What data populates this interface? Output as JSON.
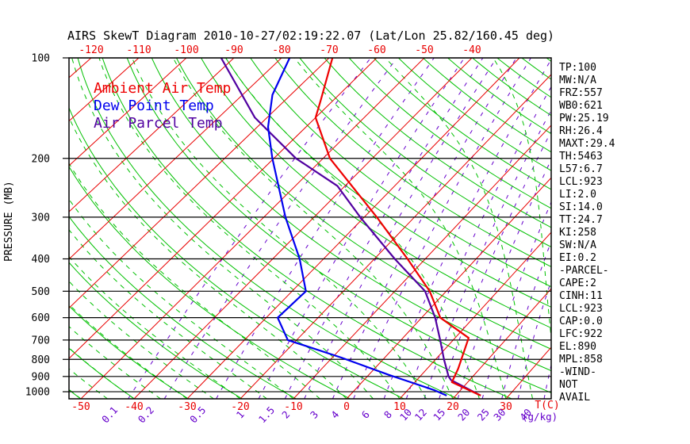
{
  "title": "AIRS SkewT Diagram 2010-10-27/02:19:22.07 (Lat/Lon 25.82/160.45 deg)",
  "legend": [
    {
      "label": "Ambient Air Temp",
      "color": "#ee0000"
    },
    {
      "label": "Dew Point Temp",
      "color": "#0000ee"
    },
    {
      "label": "Air Parcel Temp",
      "color": "#5000a0"
    }
  ],
  "axes": {
    "pressure_label": "PRESSURE (MB)",
    "pressure_ticks": [
      100,
      200,
      300,
      400,
      500,
      600,
      700,
      800,
      900,
      1000
    ],
    "top_temp_ticks": [
      -120,
      -110,
      -100,
      -90,
      -80,
      -70,
      -60,
      -50,
      -40
    ],
    "bottom_temp_ticks": [
      -50,
      -40,
      -30,
      -20,
      -10,
      0,
      10,
      20,
      30
    ],
    "bottom_label": "T(C)",
    "mixing_unit": "(g/kg)"
  },
  "stats": [
    "TP:100",
    "MW:N/A",
    "FRZ:557",
    "WB0:621",
    "PW:25.19",
    "RH:26.4",
    "MAXT:29.4",
    "TH:5463",
    "L57:6.7",
    "LCL:923",
    "LI:2.0",
    "SI:14.0",
    "TT:24.7",
    "KI:258",
    "SW:N/A",
    "EI:0.2",
    "-PARCEL-",
    "CAPE:2",
    "CINH:11",
    "LCL:923",
    "CAP:0.0",
    "LFC:922",
    "EL:890",
    "MPL:858",
    "-WIND-",
    "NOT",
    "AVAIL"
  ],
  "colors": {
    "isotherm": "#e80000",
    "adiabat": "#00c000",
    "mixing": "#6600cc",
    "pressure_line": "#000000",
    "frame": "#000000",
    "tick_label_top_bottom": "#e80000",
    "pressure_label": "#000000"
  },
  "chart_data": {
    "type": "line",
    "chart_kind": "skew-t-log-p",
    "title": "AIRS SkewT Diagram 2010-10-27/02:19:22.07 (Lat/Lon 25.82/160.45 deg)",
    "y_axis": {
      "label": "PRESSURE (MB)",
      "scale": "log",
      "range": [
        100,
        1050
      ],
      "ticks": [
        100,
        200,
        300,
        400,
        500,
        600,
        700,
        800,
        900,
        1000
      ]
    },
    "x_axis": {
      "label": "T(C)",
      "top_ticks": [
        -120,
        -110,
        -100,
        -90,
        -80,
        -70,
        -60,
        -50,
        -40
      ],
      "bottom_ticks": [
        -50,
        -40,
        -30,
        -20,
        -10,
        0,
        10,
        20,
        30
      ]
    },
    "background": {
      "isotherms": {
        "min": -130,
        "max": 40,
        "step": 10,
        "style": "solid",
        "color": "#e80000"
      },
      "dry_adiabats": {
        "theta_min": 220,
        "theta_max": 480,
        "step": 10,
        "style": "solid",
        "color": "#00c000"
      },
      "moist_adiabats": {
        "t_start_min": -55,
        "t_start_max": 40,
        "step": 5,
        "style": "dashed",
        "color": "#00c000"
      },
      "mixing_ratio_g_kg": {
        "values": [
          0.1,
          0.2,
          0.5,
          1,
          1.5,
          2,
          3,
          4,
          6,
          8,
          10,
          12,
          15,
          20,
          25,
          30,
          40
        ],
        "style": "dashed",
        "color": "#6600cc",
        "unit": "(g/kg)"
      }
    },
    "series": [
      {
        "name": "Ambient Air Temp",
        "color": "#ee0000",
        "units": [
          "mb",
          "degC"
        ],
        "points": [
          [
            100,
            -69.3
          ],
          [
            134,
            -62.6
          ],
          [
            151,
            -60.0
          ],
          [
            200,
            -48.6
          ],
          [
            300,
            -27.5
          ],
          [
            400,
            -13.5
          ],
          [
            500,
            -3.2
          ],
          [
            600,
            3.6
          ],
          [
            690,
            12.6
          ],
          [
            853,
            15.9
          ],
          [
            936,
            17.0
          ],
          [
            1027,
            24.7
          ]
        ]
      },
      {
        "name": "Dew Point Temp",
        "color": "#0000ee",
        "units": [
          "mb",
          "degC"
        ],
        "points": [
          [
            100,
            -78.3
          ],
          [
            129,
            -73.8
          ],
          [
            161,
            -67.8
          ],
          [
            200,
            -60.3
          ],
          [
            300,
            -45.7
          ],
          [
            400,
            -34.7
          ],
          [
            500,
            -27.3
          ],
          [
            600,
            -27.8
          ],
          [
            700,
            -21.7
          ],
          [
            790,
            -8.3
          ],
          [
            890,
            3.8
          ],
          [
            990,
            15.1
          ],
          [
            1027,
            18.3
          ]
        ]
      },
      {
        "name": "Air Parcel Temp",
        "color": "#5000a0",
        "units": [
          "mb",
          "degC"
        ],
        "points": [
          [
            100,
            -92.7
          ],
          [
            151,
            -72.5
          ],
          [
            200,
            -55.5
          ],
          [
            242,
            -41.5
          ],
          [
            300,
            -30.8
          ],
          [
            400,
            -16.0
          ],
          [
            500,
            -4.1
          ],
          [
            600,
            2.6
          ],
          [
            700,
            7.5
          ],
          [
            800,
            11.6
          ],
          [
            900,
            15.4
          ],
          [
            923,
            16.5
          ],
          [
            1027,
            24.7
          ]
        ]
      }
    ]
  }
}
